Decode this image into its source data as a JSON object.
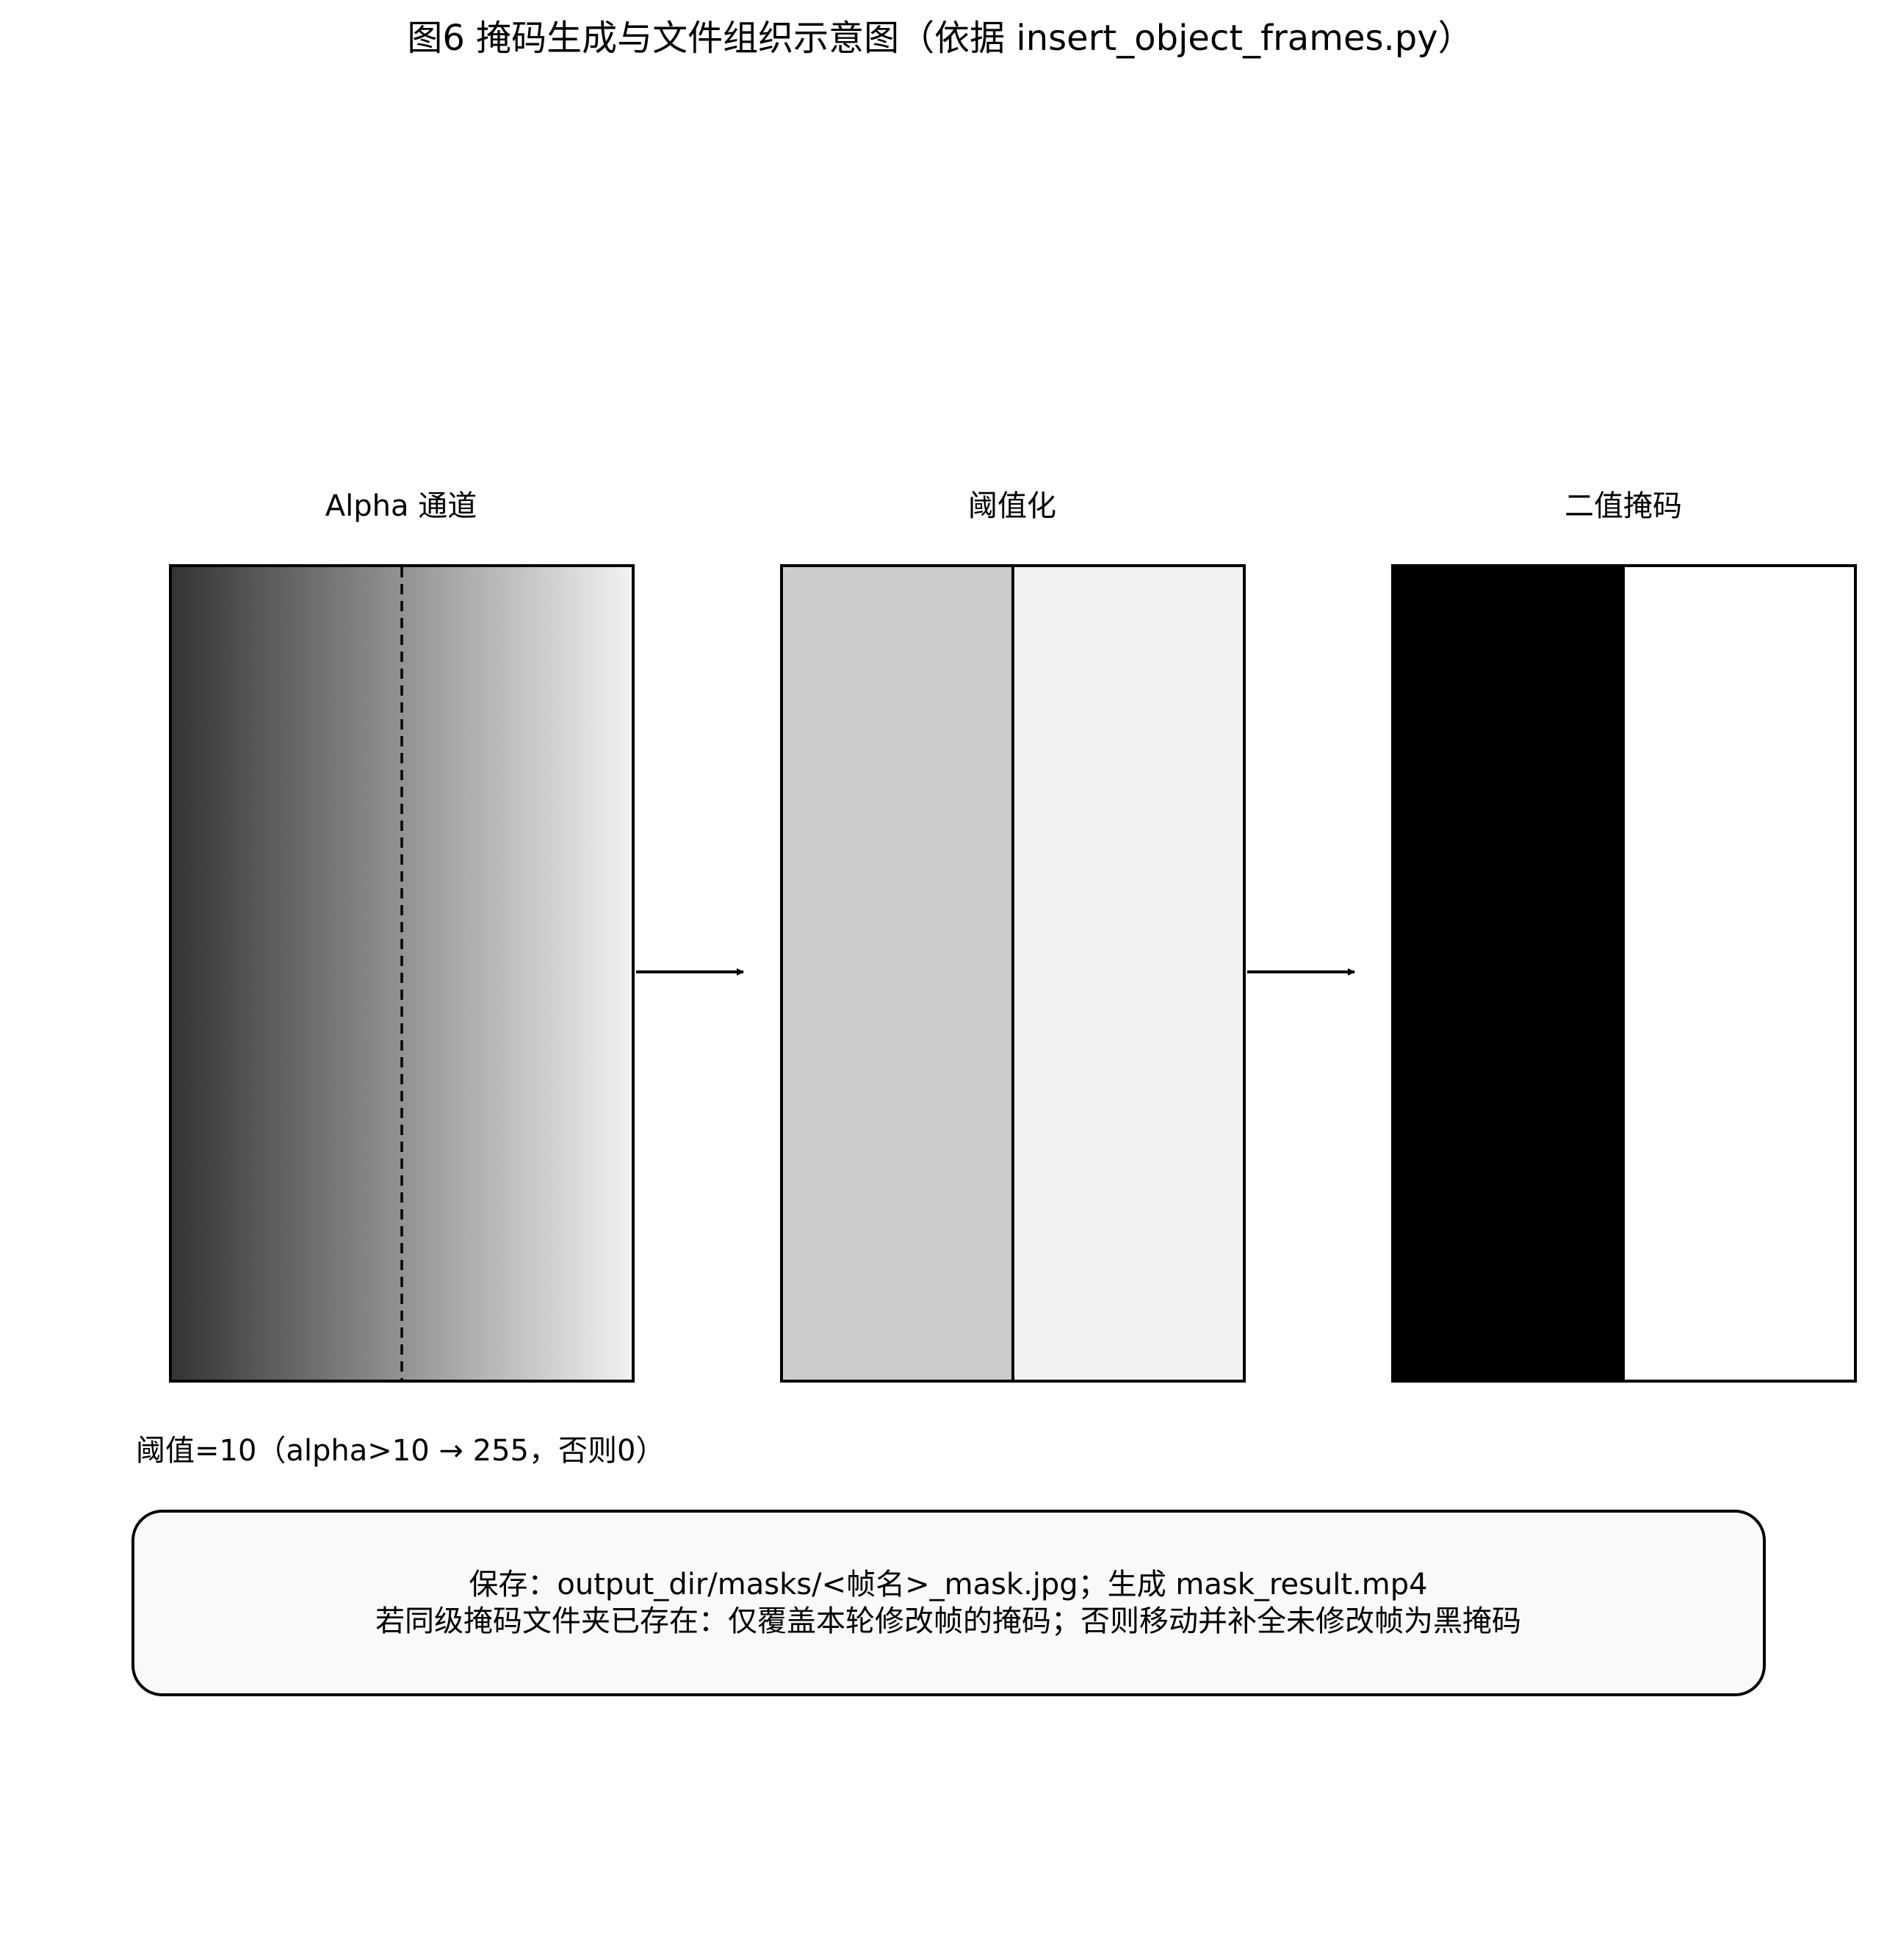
{
  "title": "图6 掩码生成与文件组织示意图（依据 insert_object_frames.py）",
  "panels": [
    {
      "label": "Alpha 通道"
    },
    {
      "label": "阈值化"
    },
    {
      "label": "二值掩码"
    }
  ],
  "threshold_note": "阈值=10（alpha>10 → 255，否则0）",
  "info_box": {
    "line1": "保存：output_dir/masks/<帧名>_mask.jpg；生成 mask_result.mp4",
    "line2": "若同级掩码文件夹已存在：仅覆盖本轮修改帧的掩码；否则移动并补全未修改帧为黑掩码"
  },
  "colors": {
    "gradient_start": "#333333",
    "gradient_end": "#f2f2f2",
    "threshold_left": "#cccccc",
    "threshold_right": "#f2f2f2",
    "mask_left": "#000000",
    "mask_right": "#ffffff",
    "info_box_fill": "#f9f9f9"
  }
}
